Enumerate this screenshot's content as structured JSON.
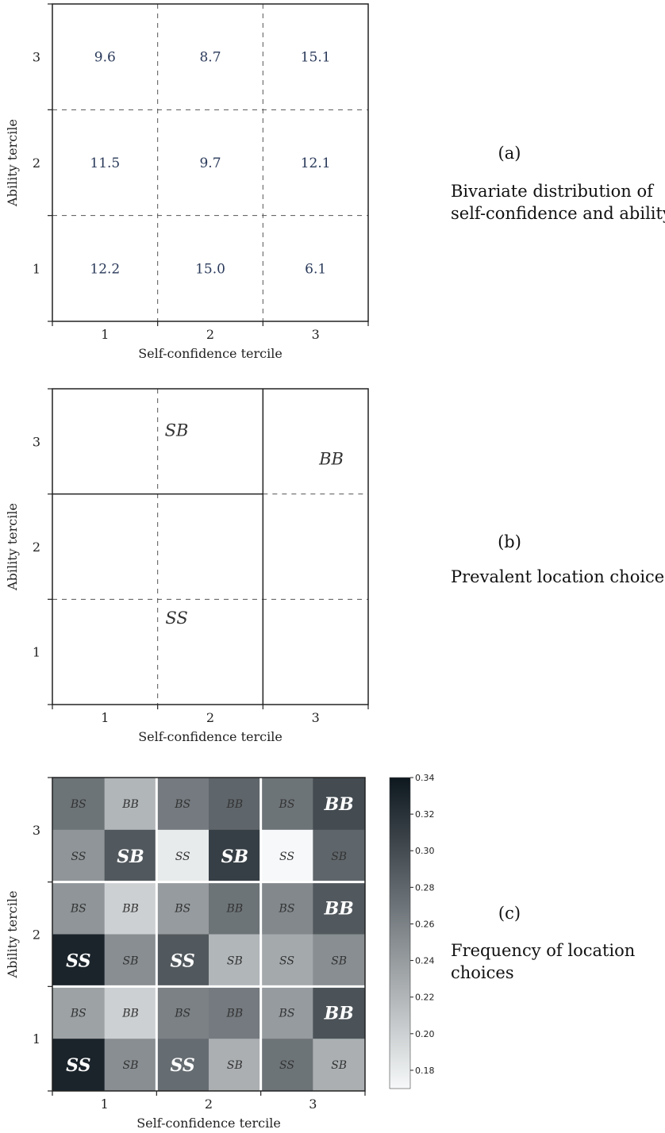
{
  "chart_data": [
    {
      "type": "heatmap",
      "panel": "(a)",
      "side_caption": [
        "Bivariate distribution of",
        "self-confidence and ability"
      ],
      "xlabel": "Self-confidence tercile",
      "ylabel": "Ability tercile",
      "x_ticks": [
        "1",
        "2",
        "3"
      ],
      "y_ticks": [
        "1",
        "2",
        "3"
      ],
      "cells": [
        {
          "x": 1,
          "y": 3,
          "label": "9.6"
        },
        {
          "x": 2,
          "y": 3,
          "label": "8.7"
        },
        {
          "x": 3,
          "y": 3,
          "label": "15.1"
        },
        {
          "x": 1,
          "y": 2,
          "label": "11.5"
        },
        {
          "x": 2,
          "y": 2,
          "label": "9.7"
        },
        {
          "x": 3,
          "y": 2,
          "label": "12.1"
        },
        {
          "x": 1,
          "y": 1,
          "label": "12.2"
        },
        {
          "x": 2,
          "y": 1,
          "label": "15.0"
        },
        {
          "x": 3,
          "y": 1,
          "label": "6.1"
        }
      ]
    },
    {
      "type": "heatmap",
      "panel": "(b)",
      "side_caption": [
        "Prevalent location choice"
      ],
      "xlabel": "Self-confidence tercile",
      "ylabel": "Ability tercile",
      "x_ticks": [
        "1",
        "2",
        "3"
      ],
      "y_ticks": [
        "1",
        "2",
        "3"
      ],
      "regions": [
        {
          "label": "SB",
          "x_range": [
            0.5,
            2.5
          ],
          "y_range": [
            2.5,
            3.5
          ]
        },
        {
          "label": "SS",
          "x_range": [
            0.5,
            2.5
          ],
          "y_range": [
            0.5,
            2.5
          ]
        },
        {
          "label": "BB",
          "x_range": [
            2.5,
            3.5
          ],
          "y_range": [
            0.5,
            3.5
          ]
        }
      ]
    },
    {
      "type": "heatmap",
      "panel": "(c)",
      "side_caption": [
        "Frequency of location",
        "choices"
      ],
      "xlabel": "Self-confidence tercile",
      "ylabel": "Ability tercile",
      "x_ticks": [
        "1",
        "2",
        "3"
      ],
      "y_ticks": [
        "1",
        "2",
        "3"
      ],
      "colorbar": {
        "range": [
          0.17,
          0.34
        ],
        "ticks": [
          "0.18",
          "0.20",
          "0.22",
          "0.24",
          "0.26",
          "0.28",
          "0.30",
          "0.32",
          "0.34"
        ]
      },
      "rows": [
        {
          "labels": [
            "BS",
            "BB",
            "BS",
            "BB",
            "BS",
            "BB"
          ],
          "values": [
            0.27,
            0.22,
            0.265,
            0.28,
            0.27,
            0.3
          ],
          "bold": [
            false,
            false,
            false,
            false,
            false,
            true
          ]
        },
        {
          "labels": [
            "SS",
            "SB",
            "SS",
            "SB",
            "SS",
            "SB"
          ],
          "values": [
            0.245,
            0.29,
            0.18,
            0.31,
            0.17,
            0.28
          ],
          "bold": [
            false,
            true,
            false,
            true,
            false,
            false
          ]
        },
        {
          "labels": [
            "BS",
            "BB",
            "BS",
            "BB",
            "BS",
            "BB"
          ],
          "values": [
            0.245,
            0.2,
            0.24,
            0.27,
            0.255,
            0.29
          ],
          "bold": [
            false,
            false,
            false,
            false,
            false,
            true
          ]
        },
        {
          "labels": [
            "SS",
            "SB",
            "SS",
            "SB",
            "SS",
            "SB"
          ],
          "values": [
            0.33,
            0.25,
            0.29,
            0.22,
            0.23,
            0.25
          ],
          "bold": [
            true,
            false,
            true,
            false,
            false,
            false
          ]
        },
        {
          "labels": [
            "BS",
            "BB",
            "BS",
            "BB",
            "BS",
            "BB"
          ],
          "values": [
            0.235,
            0.2,
            0.26,
            0.265,
            0.24,
            0.295
          ],
          "bold": [
            false,
            false,
            false,
            false,
            false,
            true
          ]
        },
        {
          "labels": [
            "SS",
            "SB",
            "SS",
            "SB",
            "SS",
            "SB"
          ],
          "values": [
            0.33,
            0.25,
            0.275,
            0.225,
            0.27,
            0.225
          ],
          "bold": [
            true,
            false,
            true,
            false,
            false,
            false
          ]
        }
      ]
    }
  ]
}
